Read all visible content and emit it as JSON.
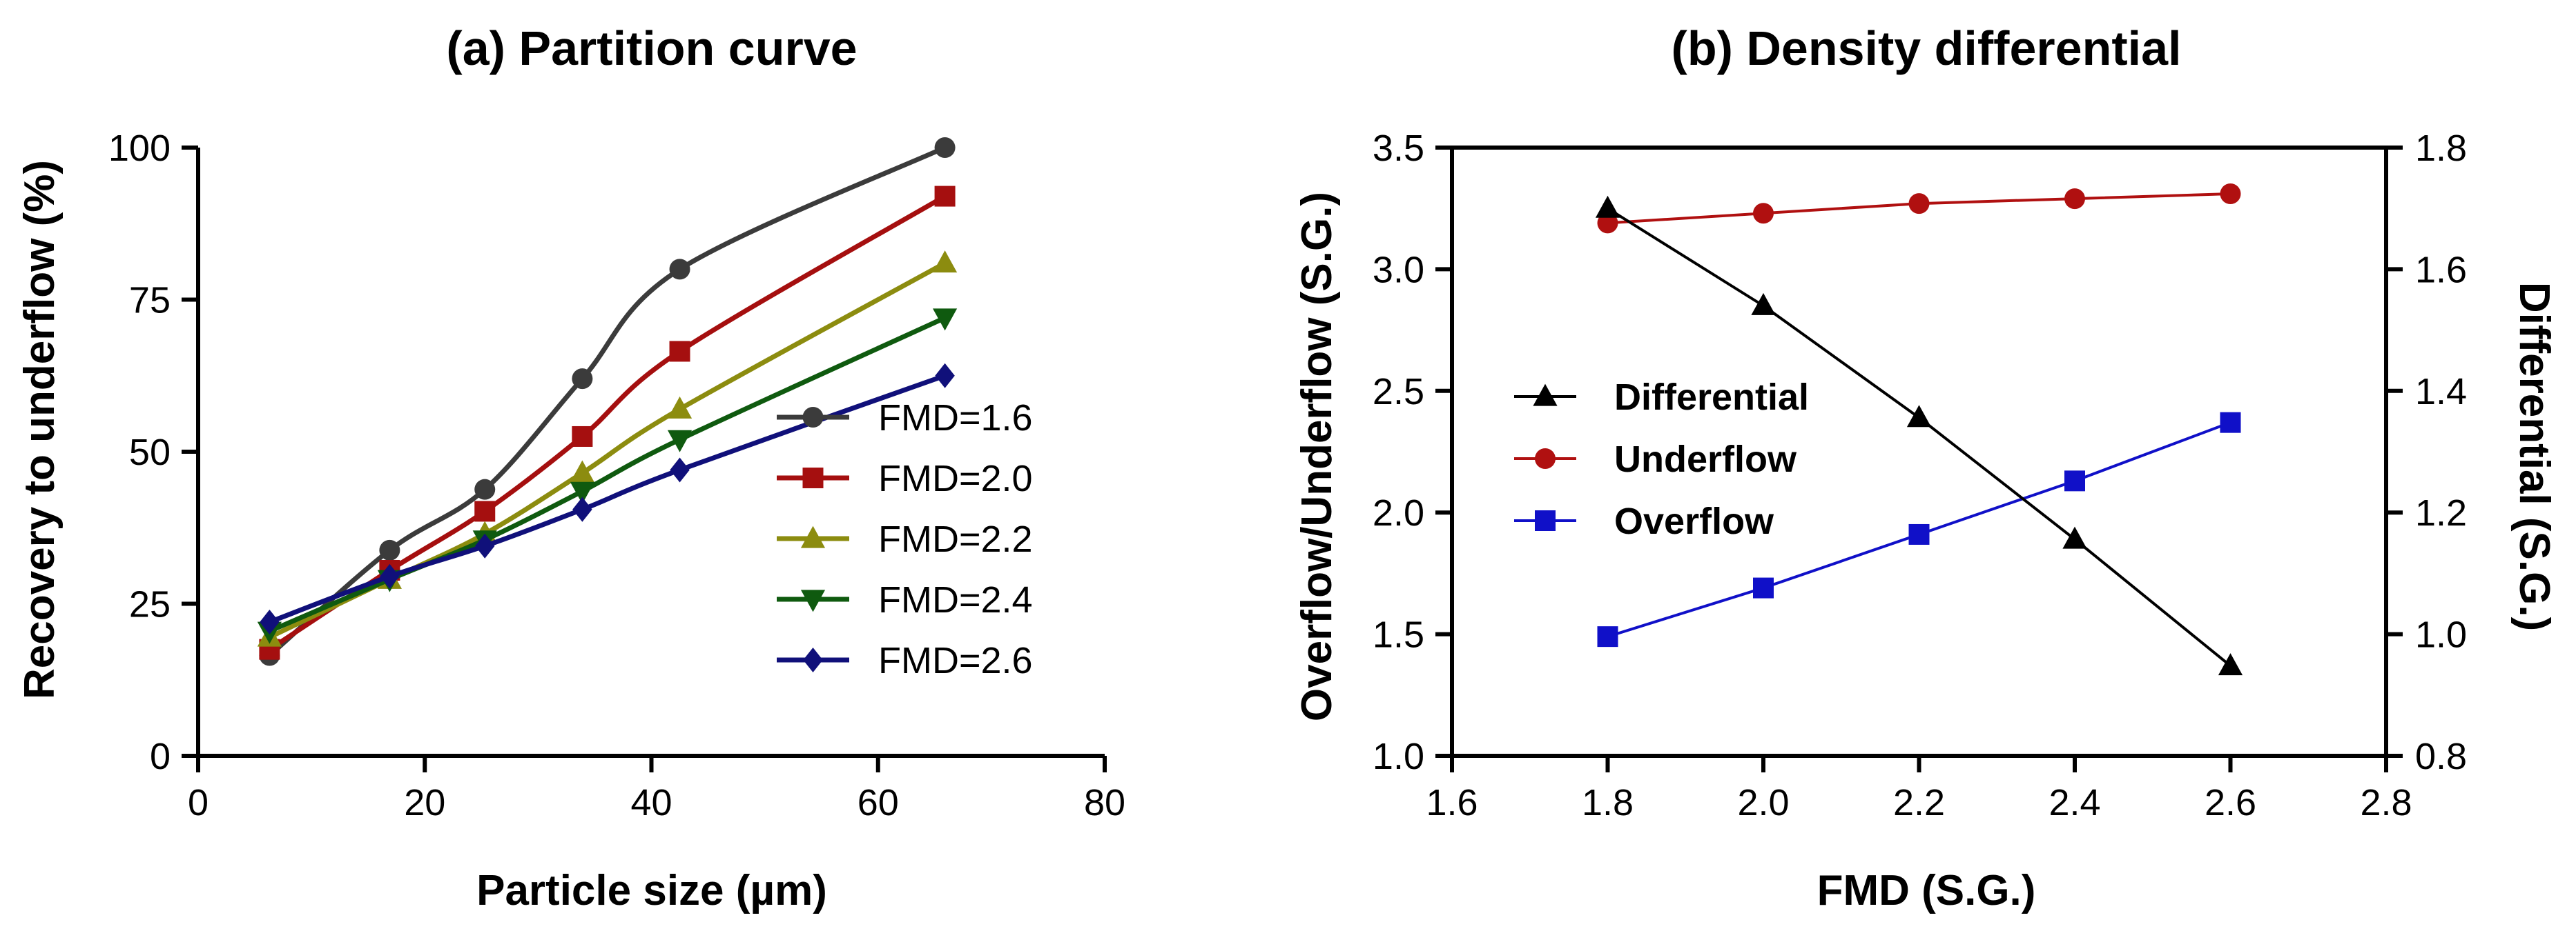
{
  "chart_data": [
    {
      "type": "line",
      "title": "(a) Partition curve",
      "xlabel": "Particle size (µm)",
      "ylabel": "Recovery to underflow (%)",
      "xlim": [
        0,
        80
      ],
      "ylim": [
        0,
        100
      ],
      "xticks": [
        "0",
        "20",
        "40",
        "60",
        "80"
      ],
      "yticks": [
        "0",
        "25",
        "50",
        "75",
        "100"
      ],
      "grid": false,
      "legend_position": "lower-right",
      "x": [
        6.3,
        16.9,
        25.3,
        33.9,
        42.5,
        65.9
      ],
      "series": [
        {
          "name": "FMD=1.6",
          "marker": "circle",
          "color": "#3b3b3b",
          "values": [
            16.5,
            33.8,
            43.8,
            62.0,
            80.0,
            100.0
          ]
        },
        {
          "name": "FMD=2.0",
          "marker": "square",
          "color": "#a50f0f",
          "values": [
            17.5,
            30.5,
            40.2,
            52.5,
            66.5,
            92.0
          ]
        },
        {
          "name": "FMD=2.2",
          "marker": "triangle-up",
          "color": "#8c8c0f",
          "values": [
            19.5,
            29.0,
            36.5,
            46.5,
            57.0,
            81.0
          ]
        },
        {
          "name": "FMD=2.4",
          "marker": "triangle-down",
          "color": "#0f5a0f",
          "values": [
            20.5,
            29.0,
            35.5,
            43.5,
            52.0,
            72.0
          ]
        },
        {
          "name": "FMD=2.6",
          "marker": "diamond",
          "color": "#10107a",
          "values": [
            22.0,
            29.5,
            34.5,
            40.5,
            47.0,
            62.5
          ]
        }
      ]
    },
    {
      "type": "line",
      "title": "(b) Density differential",
      "xlabel": "FMD (S.G.)",
      "ylabel": "Overflow/Underflow (S.G.)",
      "y2label": "Differential (S.G.)",
      "xlim": [
        1.6,
        2.8
      ],
      "ylim": [
        1.0,
        3.5
      ],
      "y2lim": [
        0.8,
        1.8
      ],
      "xticks": [
        "1.6",
        "1.8",
        "2.0",
        "2.2",
        "2.4",
        "2.6",
        "2.8"
      ],
      "yticks": [
        "1.0",
        "1.5",
        "2.0",
        "2.5",
        "3.0",
        "3.5"
      ],
      "y2ticks": [
        "0.8",
        "1.0",
        "1.2",
        "1.4",
        "1.6",
        "1.8"
      ],
      "grid": false,
      "legend_position": "center-left",
      "x": [
        1.8,
        2.0,
        2.2,
        2.4,
        2.6
      ],
      "series": [
        {
          "name": "Differential",
          "axis": "right",
          "marker": "triangle-up",
          "color": "#000000",
          "values": [
            1.7,
            1.54,
            1.356,
            1.156,
            0.948
          ]
        },
        {
          "name": "Underflow",
          "axis": "left",
          "marker": "circle",
          "color": "#b01010",
          "values": [
            3.19,
            3.23,
            3.27,
            3.29,
            3.31
          ]
        },
        {
          "name": "Overflow",
          "axis": "left",
          "marker": "square",
          "color": "#1010c8",
          "values": [
            1.49,
            1.69,
            1.91,
            2.13,
            2.37
          ]
        }
      ]
    }
  ]
}
